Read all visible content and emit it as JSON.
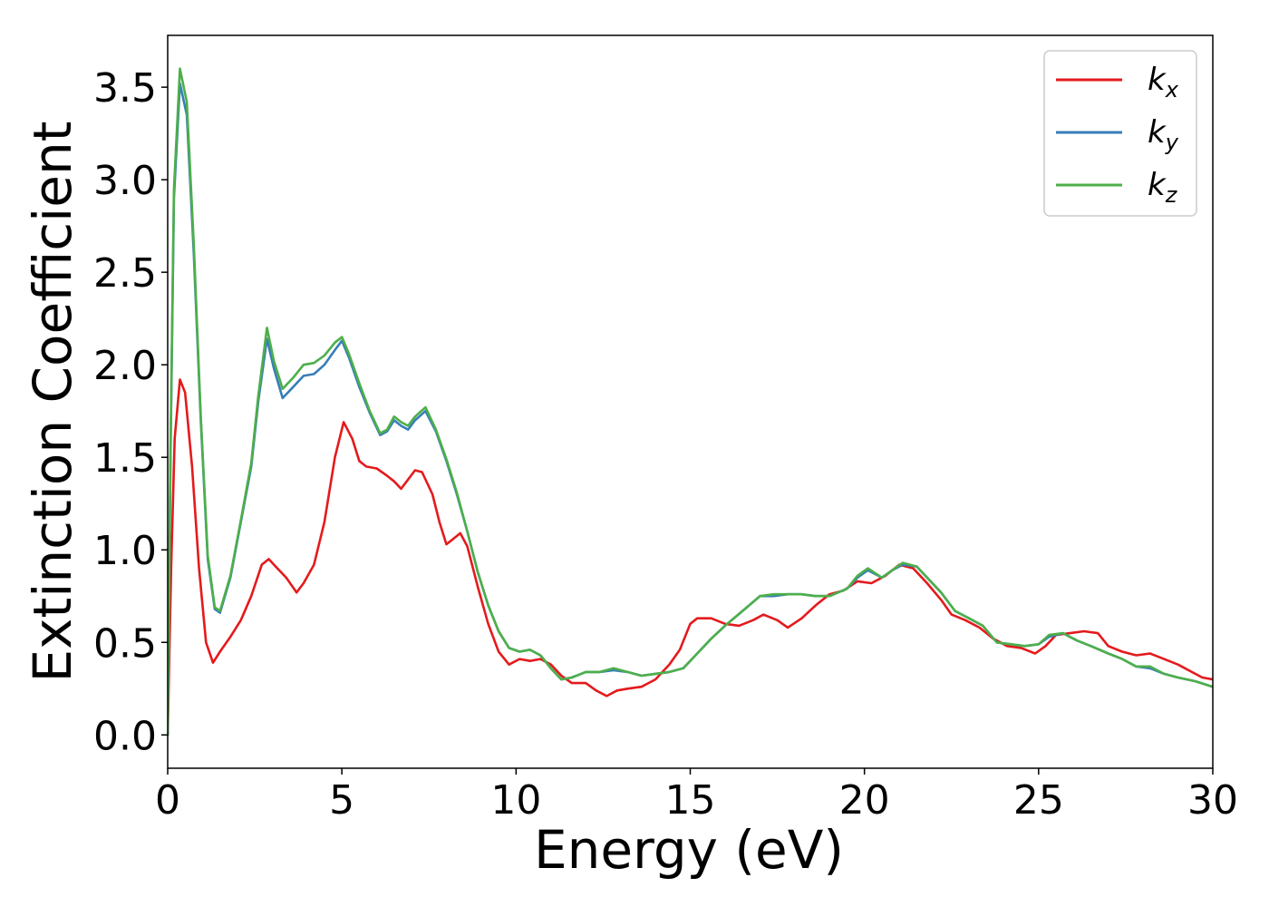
{
  "chart_data": {
    "type": "line",
    "title": "",
    "xlabel": "Energy (eV)",
    "ylabel": "Extinction Coefficient",
    "xlim": [
      0,
      30
    ],
    "ylim": [
      -0.18,
      3.78
    ],
    "xticks": [
      0,
      5,
      10,
      15,
      20,
      25,
      30
    ],
    "xtick_labels": [
      "0",
      "5",
      "10",
      "15",
      "20",
      "25",
      "30"
    ],
    "yticks": [
      0.0,
      0.5,
      1.0,
      1.5,
      2.0,
      2.5,
      3.0,
      3.5
    ],
    "ytick_labels": [
      "0.0",
      "0.5",
      "1.0",
      "1.5",
      "2.0",
      "2.5",
      "3.0",
      "3.5"
    ],
    "grid": false,
    "legend_position": "top-right",
    "series": [
      {
        "name": "k_x",
        "label_base": "k",
        "label_sub": "x",
        "color": "#e41a1c",
        "points": [
          [
            0,
            0
          ],
          [
            0.1,
            0.9
          ],
          [
            0.2,
            1.6
          ],
          [
            0.35,
            1.92
          ],
          [
            0.5,
            1.85
          ],
          [
            0.7,
            1.45
          ],
          [
            0.9,
            0.9
          ],
          [
            1.1,
            0.5
          ],
          [
            1.3,
            0.39
          ],
          [
            1.5,
            0.45
          ],
          [
            1.8,
            0.53
          ],
          [
            2.1,
            0.62
          ],
          [
            2.4,
            0.75
          ],
          [
            2.7,
            0.92
          ],
          [
            2.9,
            0.95
          ],
          [
            3.1,
            0.91
          ],
          [
            3.4,
            0.85
          ],
          [
            3.7,
            0.77
          ],
          [
            3.9,
            0.82
          ],
          [
            4.2,
            0.92
          ],
          [
            4.5,
            1.15
          ],
          [
            4.8,
            1.5
          ],
          [
            5.05,
            1.69
          ],
          [
            5.3,
            1.6
          ],
          [
            5.5,
            1.48
          ],
          [
            5.7,
            1.45
          ],
          [
            6.0,
            1.44
          ],
          [
            6.3,
            1.4
          ],
          [
            6.5,
            1.37
          ],
          [
            6.7,
            1.33
          ],
          [
            6.9,
            1.38
          ],
          [
            7.1,
            1.43
          ],
          [
            7.3,
            1.42
          ],
          [
            7.6,
            1.3
          ],
          [
            7.8,
            1.15
          ],
          [
            8.0,
            1.03
          ],
          [
            8.2,
            1.06
          ],
          [
            8.4,
            1.09
          ],
          [
            8.6,
            1.02
          ],
          [
            8.9,
            0.8
          ],
          [
            9.2,
            0.6
          ],
          [
            9.5,
            0.45
          ],
          [
            9.8,
            0.38
          ],
          [
            10.1,
            0.41
          ],
          [
            10.4,
            0.4
          ],
          [
            10.7,
            0.41
          ],
          [
            11.0,
            0.38
          ],
          [
            11.3,
            0.32
          ],
          [
            11.6,
            0.28
          ],
          [
            12.0,
            0.28
          ],
          [
            12.3,
            0.24
          ],
          [
            12.6,
            0.21
          ],
          [
            12.9,
            0.24
          ],
          [
            13.2,
            0.25
          ],
          [
            13.6,
            0.26
          ],
          [
            14.0,
            0.3
          ],
          [
            14.4,
            0.38
          ],
          [
            14.7,
            0.46
          ],
          [
            15.0,
            0.6
          ],
          [
            15.2,
            0.63
          ],
          [
            15.6,
            0.63
          ],
          [
            16.0,
            0.6
          ],
          [
            16.4,
            0.59
          ],
          [
            16.8,
            0.62
          ],
          [
            17.1,
            0.65
          ],
          [
            17.5,
            0.62
          ],
          [
            17.8,
            0.58
          ],
          [
            18.2,
            0.63
          ],
          [
            18.6,
            0.7
          ],
          [
            19.0,
            0.76
          ],
          [
            19.4,
            0.78
          ],
          [
            19.8,
            0.83
          ],
          [
            20.2,
            0.82
          ],
          [
            20.6,
            0.86
          ],
          [
            21.0,
            0.92
          ],
          [
            21.4,
            0.9
          ],
          [
            21.8,
            0.82
          ],
          [
            22.2,
            0.73
          ],
          [
            22.5,
            0.65
          ],
          [
            22.9,
            0.62
          ],
          [
            23.3,
            0.58
          ],
          [
            23.7,
            0.52
          ],
          [
            24.1,
            0.48
          ],
          [
            24.5,
            0.47
          ],
          [
            24.9,
            0.44
          ],
          [
            25.2,
            0.48
          ],
          [
            25.5,
            0.54
          ],
          [
            25.9,
            0.55
          ],
          [
            26.3,
            0.56
          ],
          [
            26.7,
            0.55
          ],
          [
            27.0,
            0.48
          ],
          [
            27.4,
            0.45
          ],
          [
            27.8,
            0.43
          ],
          [
            28.2,
            0.44
          ],
          [
            28.6,
            0.41
          ],
          [
            29.0,
            0.38
          ],
          [
            29.4,
            0.34
          ],
          [
            29.7,
            0.31
          ],
          [
            30.0,
            0.3
          ]
        ]
      },
      {
        "name": "k_y",
        "label_base": "k",
        "label_sub": "y",
        "color": "#377eb8",
        "points": [
          [
            0,
            0
          ],
          [
            0.08,
            1.5
          ],
          [
            0.18,
            2.9
          ],
          [
            0.35,
            3.52
          ],
          [
            0.55,
            3.35
          ],
          [
            0.75,
            2.6
          ],
          [
            0.95,
            1.7
          ],
          [
            1.15,
            0.95
          ],
          [
            1.35,
            0.68
          ],
          [
            1.5,
            0.66
          ],
          [
            1.8,
            0.85
          ],
          [
            2.1,
            1.15
          ],
          [
            2.4,
            1.45
          ],
          [
            2.6,
            1.8
          ],
          [
            2.85,
            2.14
          ],
          [
            3.05,
            1.98
          ],
          [
            3.3,
            1.82
          ],
          [
            3.6,
            1.88
          ],
          [
            3.9,
            1.94
          ],
          [
            4.2,
            1.95
          ],
          [
            4.5,
            2.0
          ],
          [
            4.8,
            2.08
          ],
          [
            5.0,
            2.13
          ],
          [
            5.2,
            2.04
          ],
          [
            5.5,
            1.88
          ],
          [
            5.8,
            1.74
          ],
          [
            6.1,
            1.62
          ],
          [
            6.3,
            1.64
          ],
          [
            6.5,
            1.7
          ],
          [
            6.7,
            1.67
          ],
          [
            6.9,
            1.65
          ],
          [
            7.1,
            1.7
          ],
          [
            7.4,
            1.75
          ],
          [
            7.7,
            1.64
          ],
          [
            8.0,
            1.48
          ],
          [
            8.3,
            1.3
          ],
          [
            8.6,
            1.1
          ],
          [
            8.9,
            0.88
          ],
          [
            9.2,
            0.7
          ],
          [
            9.5,
            0.56
          ],
          [
            9.8,
            0.47
          ],
          [
            10.1,
            0.45
          ],
          [
            10.4,
            0.46
          ],
          [
            10.7,
            0.43
          ],
          [
            11.0,
            0.36
          ],
          [
            11.3,
            0.3
          ],
          [
            11.6,
            0.31
          ],
          [
            12.0,
            0.34
          ],
          [
            12.4,
            0.34
          ],
          [
            12.8,
            0.35
          ],
          [
            13.2,
            0.34
          ],
          [
            13.6,
            0.32
          ],
          [
            14.0,
            0.33
          ],
          [
            14.4,
            0.34
          ],
          [
            14.8,
            0.36
          ],
          [
            15.2,
            0.44
          ],
          [
            15.6,
            0.52
          ],
          [
            16.0,
            0.59
          ],
          [
            16.5,
            0.67
          ],
          [
            17.0,
            0.75
          ],
          [
            17.4,
            0.75
          ],
          [
            17.8,
            0.76
          ],
          [
            18.2,
            0.76
          ],
          [
            18.6,
            0.75
          ],
          [
            19.0,
            0.75
          ],
          [
            19.5,
            0.79
          ],
          [
            19.8,
            0.85
          ],
          [
            20.1,
            0.89
          ],
          [
            20.5,
            0.85
          ],
          [
            20.8,
            0.89
          ],
          [
            21.1,
            0.92
          ],
          [
            21.5,
            0.91
          ],
          [
            21.8,
            0.85
          ],
          [
            22.2,
            0.77
          ],
          [
            22.6,
            0.67
          ],
          [
            23.0,
            0.63
          ],
          [
            23.4,
            0.59
          ],
          [
            23.8,
            0.5
          ],
          [
            24.2,
            0.49
          ],
          [
            24.6,
            0.48
          ],
          [
            25.0,
            0.49
          ],
          [
            25.3,
            0.53
          ],
          [
            25.7,
            0.55
          ],
          [
            26.1,
            0.51
          ],
          [
            26.5,
            0.48
          ],
          [
            27.0,
            0.44
          ],
          [
            27.4,
            0.41
          ],
          [
            27.8,
            0.37
          ],
          [
            28.2,
            0.36
          ],
          [
            28.6,
            0.33
          ],
          [
            29.0,
            0.31
          ],
          [
            29.5,
            0.29
          ],
          [
            30.0,
            0.26
          ]
        ]
      },
      {
        "name": "k_z",
        "label_base": "k",
        "label_sub": "z",
        "color": "#4daf4a",
        "points": [
          [
            0,
            0
          ],
          [
            0.08,
            1.55
          ],
          [
            0.18,
            2.95
          ],
          [
            0.35,
            3.6
          ],
          [
            0.55,
            3.42
          ],
          [
            0.75,
            2.65
          ],
          [
            0.95,
            1.72
          ],
          [
            1.15,
            0.97
          ],
          [
            1.35,
            0.69
          ],
          [
            1.5,
            0.67
          ],
          [
            1.8,
            0.86
          ],
          [
            2.1,
            1.16
          ],
          [
            2.4,
            1.47
          ],
          [
            2.6,
            1.83
          ],
          [
            2.85,
            2.2
          ],
          [
            3.05,
            2.02
          ],
          [
            3.3,
            1.87
          ],
          [
            3.6,
            1.93
          ],
          [
            3.9,
            2.0
          ],
          [
            4.2,
            2.01
          ],
          [
            4.5,
            2.05
          ],
          [
            4.8,
            2.12
          ],
          [
            5.0,
            2.15
          ],
          [
            5.2,
            2.06
          ],
          [
            5.5,
            1.9
          ],
          [
            5.8,
            1.75
          ],
          [
            6.1,
            1.63
          ],
          [
            6.3,
            1.65
          ],
          [
            6.5,
            1.72
          ],
          [
            6.7,
            1.69
          ],
          [
            6.9,
            1.67
          ],
          [
            7.1,
            1.72
          ],
          [
            7.4,
            1.77
          ],
          [
            7.7,
            1.65
          ],
          [
            8.0,
            1.49
          ],
          [
            8.3,
            1.31
          ],
          [
            8.6,
            1.1
          ],
          [
            8.9,
            0.88
          ],
          [
            9.2,
            0.7
          ],
          [
            9.5,
            0.56
          ],
          [
            9.8,
            0.47
          ],
          [
            10.1,
            0.45
          ],
          [
            10.4,
            0.46
          ],
          [
            10.7,
            0.43
          ],
          [
            11.0,
            0.36
          ],
          [
            11.3,
            0.3
          ],
          [
            11.6,
            0.31
          ],
          [
            12.0,
            0.34
          ],
          [
            12.4,
            0.34
          ],
          [
            12.8,
            0.36
          ],
          [
            13.2,
            0.34
          ],
          [
            13.6,
            0.32
          ],
          [
            14.0,
            0.33
          ],
          [
            14.4,
            0.34
          ],
          [
            14.8,
            0.36
          ],
          [
            15.2,
            0.44
          ],
          [
            15.6,
            0.52
          ],
          [
            16.0,
            0.59
          ],
          [
            16.5,
            0.67
          ],
          [
            17.0,
            0.75
          ],
          [
            17.4,
            0.76
          ],
          [
            17.8,
            0.76
          ],
          [
            18.2,
            0.76
          ],
          [
            18.6,
            0.75
          ],
          [
            19.0,
            0.75
          ],
          [
            19.5,
            0.79
          ],
          [
            19.8,
            0.86
          ],
          [
            20.1,
            0.9
          ],
          [
            20.5,
            0.85
          ],
          [
            20.8,
            0.89
          ],
          [
            21.1,
            0.93
          ],
          [
            21.5,
            0.91
          ],
          [
            21.8,
            0.85
          ],
          [
            22.2,
            0.77
          ],
          [
            22.6,
            0.67
          ],
          [
            23.0,
            0.63
          ],
          [
            23.4,
            0.59
          ],
          [
            23.8,
            0.5
          ],
          [
            24.2,
            0.49
          ],
          [
            24.6,
            0.48
          ],
          [
            25.0,
            0.49
          ],
          [
            25.3,
            0.54
          ],
          [
            25.7,
            0.55
          ],
          [
            26.1,
            0.51
          ],
          [
            26.5,
            0.48
          ],
          [
            27.0,
            0.44
          ],
          [
            27.4,
            0.41
          ],
          [
            27.8,
            0.37
          ],
          [
            28.2,
            0.37
          ],
          [
            28.6,
            0.33
          ],
          [
            29.0,
            0.31
          ],
          [
            29.5,
            0.29
          ],
          [
            30.0,
            0.26
          ]
        ]
      }
    ]
  }
}
